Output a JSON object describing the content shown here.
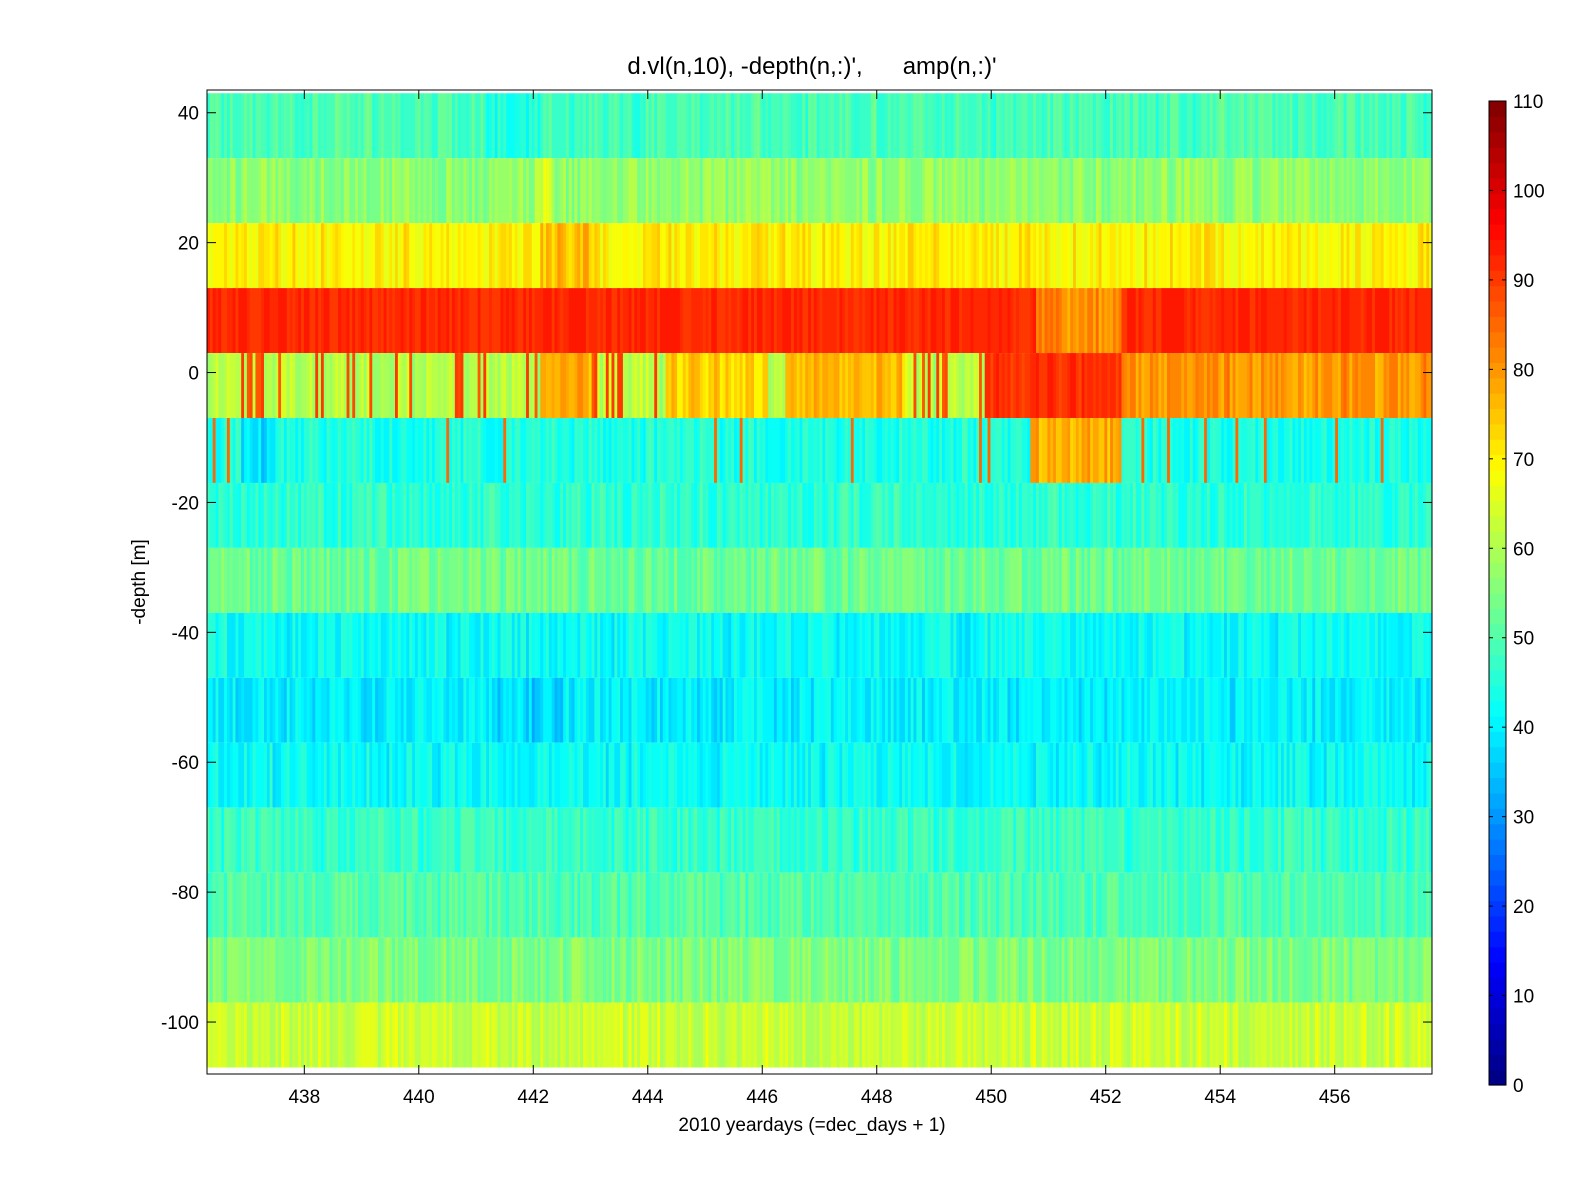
{
  "chart_data": {
    "type": "heatmap",
    "title": "d.vl(n,10), -depth(n,:)',      amp(n,:)'",
    "xlabel": "2010 yeardays (=dec_days + 1)",
    "ylabel": "-depth [m]",
    "xlim": [
      436.3,
      457.7
    ],
    "ylim": [
      -108,
      43.5
    ],
    "x_ticks": [
      438,
      440,
      442,
      444,
      446,
      448,
      450,
      452,
      454,
      456
    ],
    "y_ticks": [
      40,
      20,
      0,
      -20,
      -40,
      -60,
      -80,
      -100
    ],
    "colorbar": {
      "clim": [
        0,
        110
      ],
      "ticks": [
        0,
        10,
        20,
        30,
        40,
        50,
        60,
        70,
        80,
        90,
        100,
        110
      ],
      "colormap": "jet",
      "levels": 64
    },
    "bins": [
      {
        "center": 38,
        "base": 49
      },
      {
        "center": 28,
        "base": 57
      },
      {
        "center": 18,
        "base": 70
      },
      {
        "center": 8,
        "base": 92
      },
      {
        "center": -2,
        "base": 61
      },
      {
        "center": -12,
        "base": 44
      },
      {
        "center": -22,
        "base": 46
      },
      {
        "center": -32,
        "base": 53
      },
      {
        "center": -42,
        "base": 42
      },
      {
        "center": -52,
        "base": 40
      },
      {
        "center": -62,
        "base": 42
      },
      {
        "center": -72,
        "base": 47
      },
      {
        "center": -82,
        "base": 50
      },
      {
        "center": -92,
        "base": 55
      },
      {
        "center": -102,
        "base": 63
      }
    ],
    "bin_height": 10,
    "features": [
      {
        "center": 38,
        "x0": 441.2,
        "x1": 442.1,
        "value": 44
      },
      {
        "center": 28,
        "x0": 442.0,
        "x1": 442.3,
        "value": 64
      },
      {
        "center": 18,
        "x0": 442.1,
        "x1": 443.0,
        "value": 76
      },
      {
        "center": 8,
        "x0": 450.8,
        "x1": 452.3,
        "value": 81
      },
      {
        "center": -2,
        "x0": 442.1,
        "x1": 443.0,
        "value": 77
      },
      {
        "center": -2,
        "x0": 444.3,
        "x1": 446.1,
        "value": 74
      },
      {
        "center": -2,
        "x0": 446.4,
        "x1": 448.5,
        "value": 76
      },
      {
        "center": -2,
        "x0": 449.9,
        "x1": 452.3,
        "value": 91
      },
      {
        "center": -2,
        "x0": 452.3,
        "x1": 457.7,
        "value": 80
      },
      {
        "center": -12,
        "x0": 450.7,
        "x1": 452.3,
        "value": 77
      },
      {
        "center": -12,
        "x0": 436.9,
        "x1": 437.5,
        "value": 38
      },
      {
        "center": -52,
        "x0": 441.4,
        "x1": 442.5,
        "value": 37
      }
    ]
  }
}
